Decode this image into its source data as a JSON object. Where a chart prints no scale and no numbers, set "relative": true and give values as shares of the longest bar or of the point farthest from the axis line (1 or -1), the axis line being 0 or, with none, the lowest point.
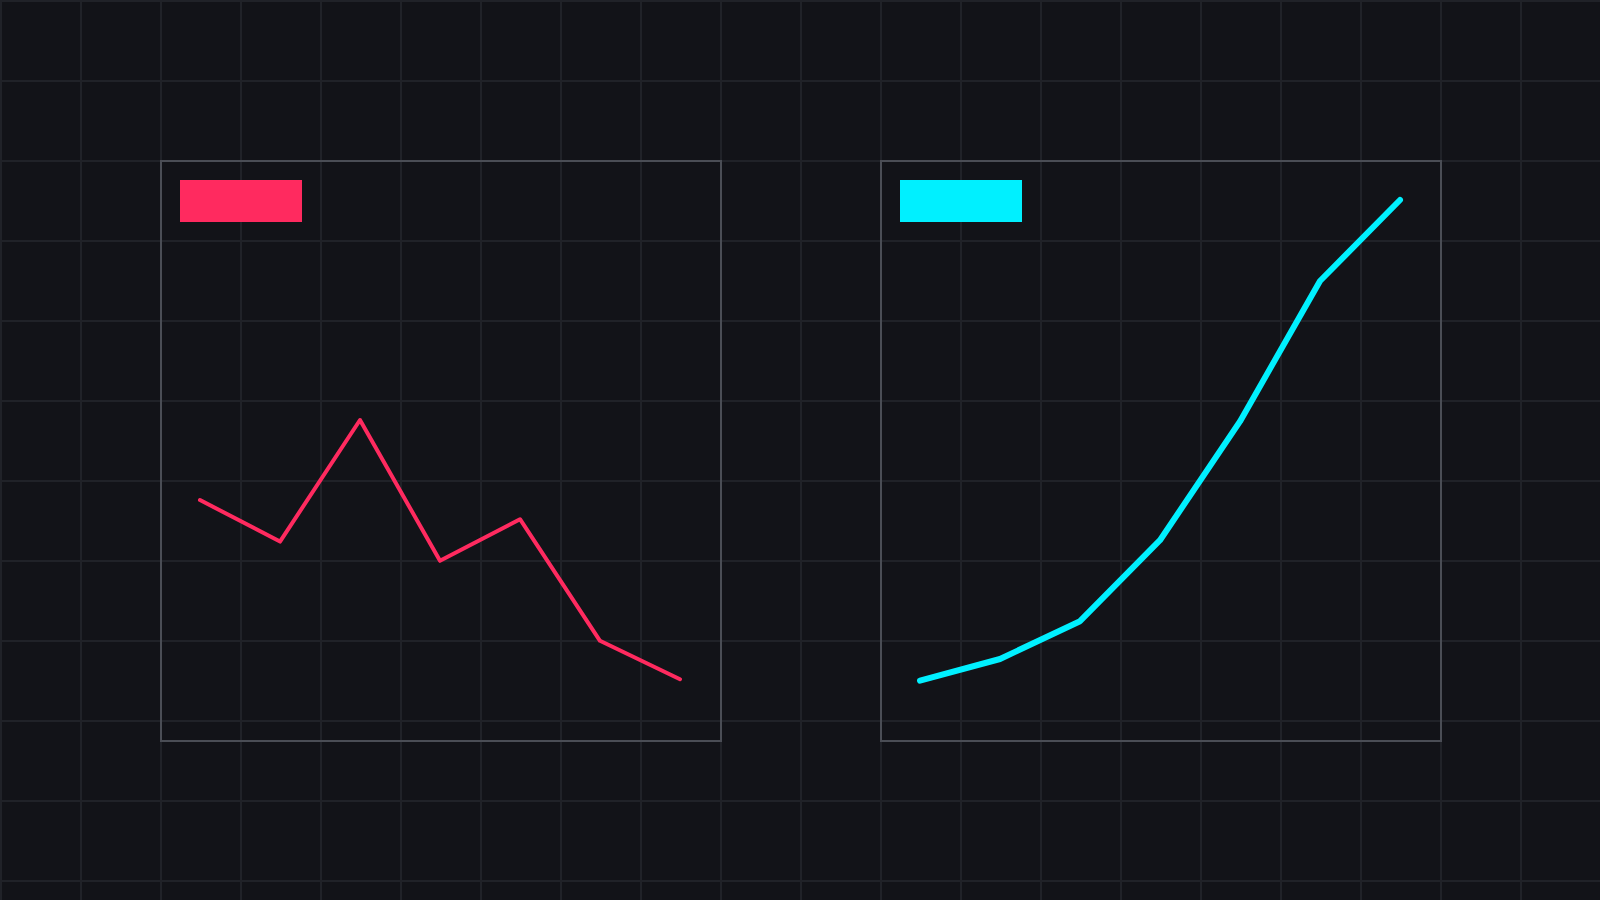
{
  "chart_data": [
    {
      "type": "line",
      "relative": true,
      "categories": [
        null,
        null,
        null,
        null,
        null,
        null,
        null
      ],
      "series": [
        {
          "color": "#ff2a5f",
          "values": [
            0.75,
            0.62,
            1,
            0.56,
            0.69,
            0.31,
            0.19
          ]
        }
      ]
    },
    {
      "type": "line",
      "relative": true,
      "categories": [
        null,
        null,
        null,
        null,
        null,
        null,
        null
      ],
      "series": [
        {
          "color": "#00f0ff",
          "values": [
            0.11,
            0.15,
            0.22,
            0.37,
            0.59,
            0.85,
            1
          ]
        }
      ]
    }
  ]
}
